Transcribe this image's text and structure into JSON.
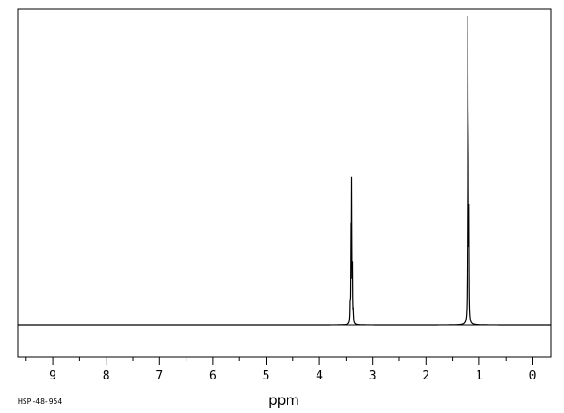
{
  "chart_data": {
    "type": "line",
    "title": "",
    "xlabel": "ppm",
    "ylabel": "",
    "xlim": [
      9.65,
      -0.35
    ],
    "x_reversed": true,
    "xticks": [
      9,
      8,
      7,
      6,
      5,
      4,
      3,
      2,
      1,
      0
    ],
    "minor_tick_step": 0.5,
    "grid": false,
    "legend": "none",
    "line_color": "#000000",
    "caption": "HSP-48-954",
    "series": [
      {
        "peaks": [
          {
            "ppm": 3.42,
            "height": 0.06
          },
          {
            "ppm": 3.405,
            "height": 0.26
          },
          {
            "ppm": 3.395,
            "height": 0.44
          },
          {
            "ppm": 3.38,
            "height": 0.19
          },
          {
            "ppm": 3.365,
            "height": 0.03
          },
          {
            "ppm": 1.225,
            "height": 0.1
          },
          {
            "ppm": 1.215,
            "height": 0.97
          },
          {
            "ppm": 1.205,
            "height": 0.53
          },
          {
            "ppm": 1.19,
            "height": 0.33
          }
        ]
      }
    ]
  }
}
